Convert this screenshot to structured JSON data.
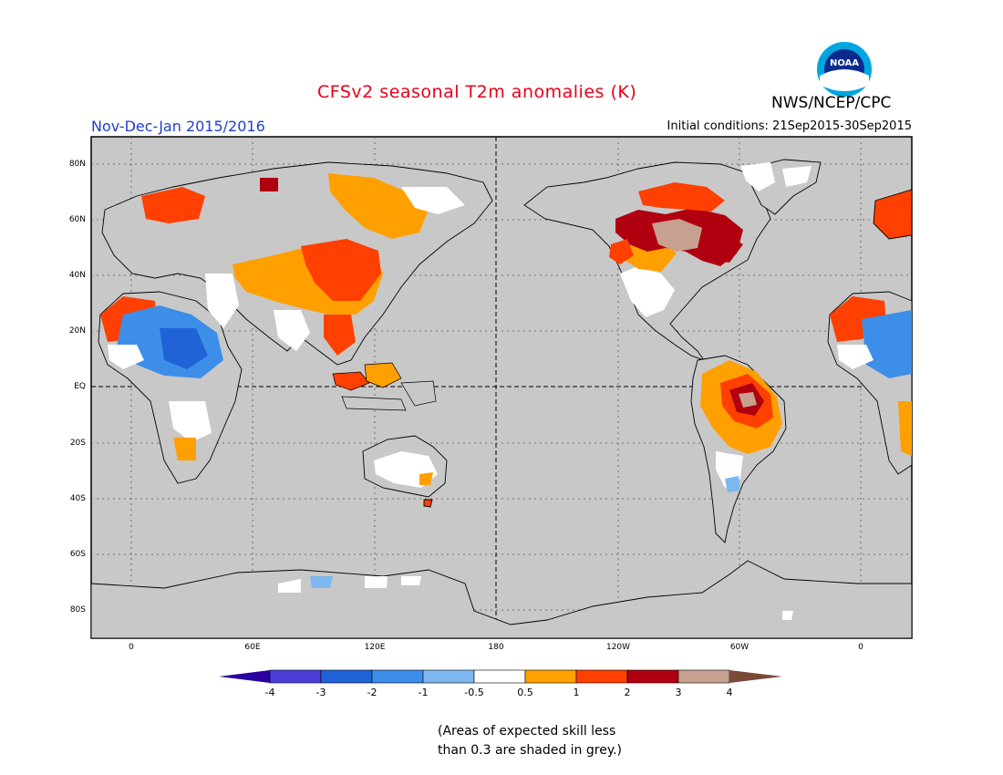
{
  "title": "CFSv2 seasonal T2m anomalies (K)",
  "agency": "NWS/NCEP/CPC",
  "logo_text": "NOAA",
  "season": "Nov-Dec-Jan 2015/2016",
  "initial_conditions": "Initial conditions: 21Sep2015-30Sep2015",
  "lat_labels": [
    "80N",
    "60N",
    "40N",
    "20N",
    "EQ",
    "20S",
    "40S",
    "60S",
    "80S"
  ],
  "lon_labels": [
    "0",
    "60E",
    "120E",
    "180",
    "120W",
    "60W",
    "0"
  ],
  "colorbar": {
    "ticks": [
      "-4",
      "-3",
      "-2",
      "-1",
      "-0.5",
      "0.5",
      "1",
      "2",
      "3",
      "4"
    ],
    "colors": [
      "#2a00a0",
      "#4b3ed6",
      "#1f63d6",
      "#3d8ee8",
      "#7db8f0",
      "#ffffff",
      "#ffa000",
      "#ff4000",
      "#b00010",
      "#c8a090",
      "#7a4a38"
    ]
  },
  "colors": {
    "title": "#e8001a",
    "season": "#1f3ed0",
    "map_background": "#c8c8c8",
    "land_skill_low": "#ffffff"
  },
  "note_lines": [
    "(Areas of expected skill less",
    "than 0.3 are shaded in grey.)"
  ]
}
